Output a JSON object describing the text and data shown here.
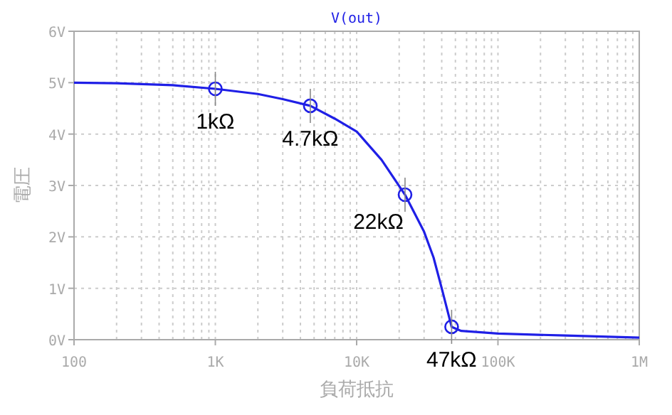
{
  "chart_data": {
    "type": "line",
    "title": "V(out)",
    "xlabel": "負荷抵抗",
    "ylabel": "電圧",
    "log": "x",
    "grid": true,
    "xlim": [
      100,
      1000000
    ],
    "xticks": [
      {
        "value": 100,
        "label": "100"
      },
      {
        "value": 1000,
        "label": "1K"
      },
      {
        "value": 10000,
        "label": "10K"
      },
      {
        "value": 100000,
        "label": "100K"
      },
      {
        "value": 1000000,
        "label": "1M"
      }
    ],
    "ylim": [
      0,
      6
    ],
    "yticks": [
      {
        "value": 0,
        "label": "0V"
      },
      {
        "value": 1,
        "label": "1V"
      },
      {
        "value": 2,
        "label": "2V"
      },
      {
        "value": 3,
        "label": "3V"
      },
      {
        "value": 4,
        "label": "4V"
      },
      {
        "value": 5,
        "label": "5V"
      },
      {
        "value": 6,
        "label": "6V"
      }
    ],
    "series": [
      {
        "color": "#1f1fe6",
        "marker": "none",
        "x": [
          100,
          200,
          500,
          1000,
          2000,
          3000,
          4700,
          7000,
          10000,
          15000,
          22000,
          30000,
          35000,
          40000,
          47000,
          55000,
          100000,
          300000,
          1000000
        ],
        "values": [
          5.0,
          4.99,
          4.95,
          4.88,
          4.78,
          4.68,
          4.55,
          4.3,
          4.05,
          3.5,
          2.82,
          2.1,
          1.6,
          1.0,
          0.25,
          0.17,
          0.12,
          0.08,
          0.04
        ]
      },
      {
        "type": "scatter",
        "color": "#1f1fe6",
        "marker": "circle",
        "x": [
          1000,
          4700,
          22000,
          47000
        ],
        "values": [
          4.88,
          4.55,
          2.82,
          0.25
        ]
      }
    ],
    "annotations": [
      {
        "text": "1kΩ",
        "x": 1000,
        "y": 4.88
      },
      {
        "text": "4.7kΩ",
        "x": 4700,
        "y": 4.55
      },
      {
        "text": "22kΩ",
        "x": 22000,
        "y": 2.82
      },
      {
        "text": "47kΩ",
        "x": 47000,
        "y": 0.25
      }
    ]
  }
}
